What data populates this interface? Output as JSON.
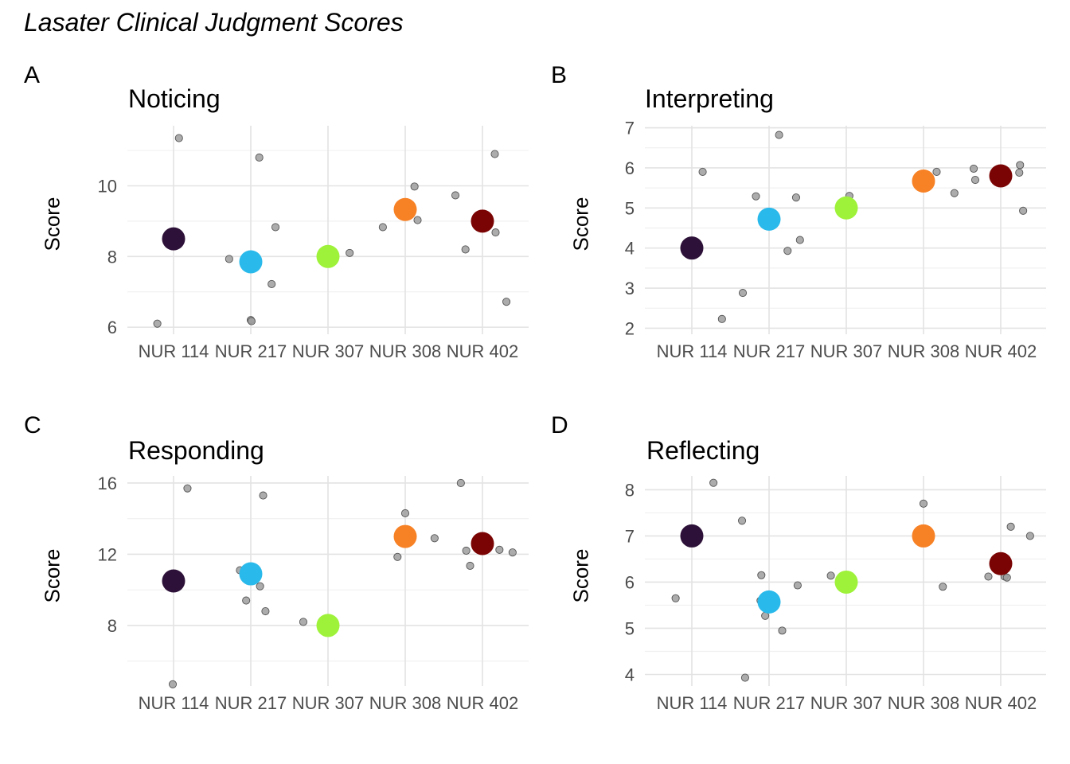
{
  "figure_title": "Lasater Clinical Judgment Scores",
  "chart_data": [
    {
      "tag": "A",
      "type": "scatter",
      "title": "Noticing",
      "ylabel": "Score",
      "categories": [
        "NUR 114",
        "NUR 217",
        "NUR 307",
        "NUR 308",
        "NUR 402"
      ],
      "ylim": [
        5.8,
        11.7
      ],
      "yticks": [
        6,
        8,
        10
      ],
      "means": [
        8.5,
        7.85,
        8.0,
        9.33,
        9.0
      ],
      "points": [
        {
          "cat": 0,
          "dx": -0.21,
          "y": 6.1
        },
        {
          "cat": 0,
          "dx": 0.07,
          "y": 11.35
        },
        {
          "cat": 1,
          "dx": -0.28,
          "y": 7.93
        },
        {
          "cat": 1,
          "dx": 0.0,
          "y": 6.2
        },
        {
          "cat": 1,
          "dx": 0.01,
          "y": 6.17
        },
        {
          "cat": 1,
          "dx": 0.11,
          "y": 10.8
        },
        {
          "cat": 1,
          "dx": 0.27,
          "y": 7.22
        },
        {
          "cat": 1,
          "dx": 0.32,
          "y": 8.83
        },
        {
          "cat": 2,
          "dx": 0.28,
          "y": 8.1
        },
        {
          "cat": 3,
          "dx": -0.29,
          "y": 8.83
        },
        {
          "cat": 3,
          "dx": 0.12,
          "y": 9.98
        },
        {
          "cat": 3,
          "dx": 0.16,
          "y": 9.03
        },
        {
          "cat": 4,
          "dx": -0.35,
          "y": 9.73
        },
        {
          "cat": 4,
          "dx": -0.22,
          "y": 8.2
        },
        {
          "cat": 4,
          "dx": 0.16,
          "y": 10.9
        },
        {
          "cat": 4,
          "dx": 0.17,
          "y": 8.68
        },
        {
          "cat": 4,
          "dx": 0.31,
          "y": 6.72
        }
      ]
    },
    {
      "tag": "B",
      "type": "scatter",
      "title": "Interpreting",
      "ylabel": "Score",
      "categories": [
        "NUR 114",
        "NUR 217",
        "NUR 307",
        "NUR 308",
        "NUR 402"
      ],
      "ylim": [
        1.85,
        7.05
      ],
      "yticks": [
        2,
        3,
        4,
        5,
        6,
        7
      ],
      "means": [
        4.0,
        4.72,
        5.0,
        5.67,
        5.8
      ],
      "points": [
        {
          "cat": 0,
          "dx": 0.14,
          "y": 5.9
        },
        {
          "cat": 0,
          "dx": 0.39,
          "y": 2.23
        },
        {
          "cat": 0,
          "dx": 0.66,
          "y": 2.88
        },
        {
          "cat": 1,
          "dx": -0.17,
          "y": 5.29
        },
        {
          "cat": 1,
          "dx": 0.24,
          "y": 3.93
        },
        {
          "cat": 1,
          "dx": 0.13,
          "y": 6.82
        },
        {
          "cat": 1,
          "dx": 0.35,
          "y": 5.26
        },
        {
          "cat": 1,
          "dx": 0.4,
          "y": 4.2
        },
        {
          "cat": 2,
          "dx": 0.04,
          "y": 5.3
        },
        {
          "cat": 3,
          "dx": 0.17,
          "y": 5.9
        },
        {
          "cat": 3,
          "dx": 0.4,
          "y": 5.37
        },
        {
          "cat": 4,
          "dx": -0.35,
          "y": 5.98
        },
        {
          "cat": 4,
          "dx": -0.33,
          "y": 5.7
        },
        {
          "cat": 4,
          "dx": 0.24,
          "y": 5.88
        },
        {
          "cat": 4,
          "dx": 0.25,
          "y": 6.07
        },
        {
          "cat": 4,
          "dx": 0.29,
          "y": 4.93
        }
      ]
    },
    {
      "tag": "C",
      "type": "scatter",
      "title": "Responding",
      "ylabel": "Score",
      "categories": [
        "NUR 114",
        "NUR 217",
        "NUR 307",
        "NUR 308",
        "NUR 402"
      ],
      "ylim": [
        4.6,
        16.4
      ],
      "yticks": [
        8,
        12,
        16
      ],
      "means": [
        10.5,
        10.9,
        8.0,
        13.0,
        12.6
      ],
      "points": [
        {
          "cat": 0,
          "dx": -0.01,
          "y": 4.7
        },
        {
          "cat": 0,
          "dx": 0.18,
          "y": 15.7
        },
        {
          "cat": 1,
          "dx": -0.14,
          "y": 11.1
        },
        {
          "cat": 1,
          "dx": -0.06,
          "y": 9.4
        },
        {
          "cat": 1,
          "dx": 0.12,
          "y": 10.2
        },
        {
          "cat": 1,
          "dx": 0.16,
          "y": 15.3
        },
        {
          "cat": 1,
          "dx": 0.19,
          "y": 8.8
        },
        {
          "cat": 2,
          "dx": -0.32,
          "y": 8.2
        },
        {
          "cat": 3,
          "dx": -0.1,
          "y": 11.85
        },
        {
          "cat": 3,
          "dx": 0.0,
          "y": 14.3
        },
        {
          "cat": 3,
          "dx": 0.38,
          "y": 12.9
        },
        {
          "cat": 4,
          "dx": -0.28,
          "y": 16.0
        },
        {
          "cat": 4,
          "dx": -0.21,
          "y": 12.2
        },
        {
          "cat": 4,
          "dx": -0.16,
          "y": 11.35
        },
        {
          "cat": 4,
          "dx": 0.22,
          "y": 12.25
        },
        {
          "cat": 4,
          "dx": 0.39,
          "y": 12.1
        }
      ]
    },
    {
      "tag": "D",
      "type": "scatter",
      "title": "Reflecting",
      "ylabel": "Score",
      "categories": [
        "NUR 114",
        "NUR 217",
        "NUR 307",
        "NUR 308",
        "NUR 402"
      ],
      "ylim": [
        3.75,
        8.3
      ],
      "yticks": [
        4,
        5,
        6,
        7,
        8
      ],
      "means": [
        7.0,
        5.57,
        6.0,
        7.0,
        6.4
      ],
      "points": [
        {
          "cat": 0,
          "dx": -0.21,
          "y": 5.65
        },
        {
          "cat": 0,
          "dx": 0.28,
          "y": 8.15
        },
        {
          "cat": 0,
          "dx": 0.65,
          "y": 7.33
        },
        {
          "cat": 0,
          "dx": 0.69,
          "y": 3.93
        },
        {
          "cat": 1,
          "dx": -0.11,
          "y": 5.6
        },
        {
          "cat": 1,
          "dx": -0.1,
          "y": 6.15
        },
        {
          "cat": 1,
          "dx": -0.05,
          "y": 5.27
        },
        {
          "cat": 1,
          "dx": 0.17,
          "y": 4.95
        },
        {
          "cat": 1,
          "dx": 0.37,
          "y": 5.93
        },
        {
          "cat": 2,
          "dx": -0.2,
          "y": 6.14
        },
        {
          "cat": 3,
          "dx": 0.0,
          "y": 7.7
        },
        {
          "cat": 3,
          "dx": 0.25,
          "y": 5.9
        },
        {
          "cat": 4,
          "dx": -0.16,
          "y": 6.12
        },
        {
          "cat": 4,
          "dx": 0.05,
          "y": 6.12
        },
        {
          "cat": 4,
          "dx": 0.08,
          "y": 6.1
        },
        {
          "cat": 4,
          "dx": 0.13,
          "y": 7.2
        },
        {
          "cat": 4,
          "dx": 0.38,
          "y": 7.0
        }
      ]
    }
  ],
  "mean_colors": [
    "#2d1138",
    "#29b9ea",
    "#9ef239",
    "#f78125",
    "#7a0403"
  ],
  "point_color": "#9e9e9e"
}
